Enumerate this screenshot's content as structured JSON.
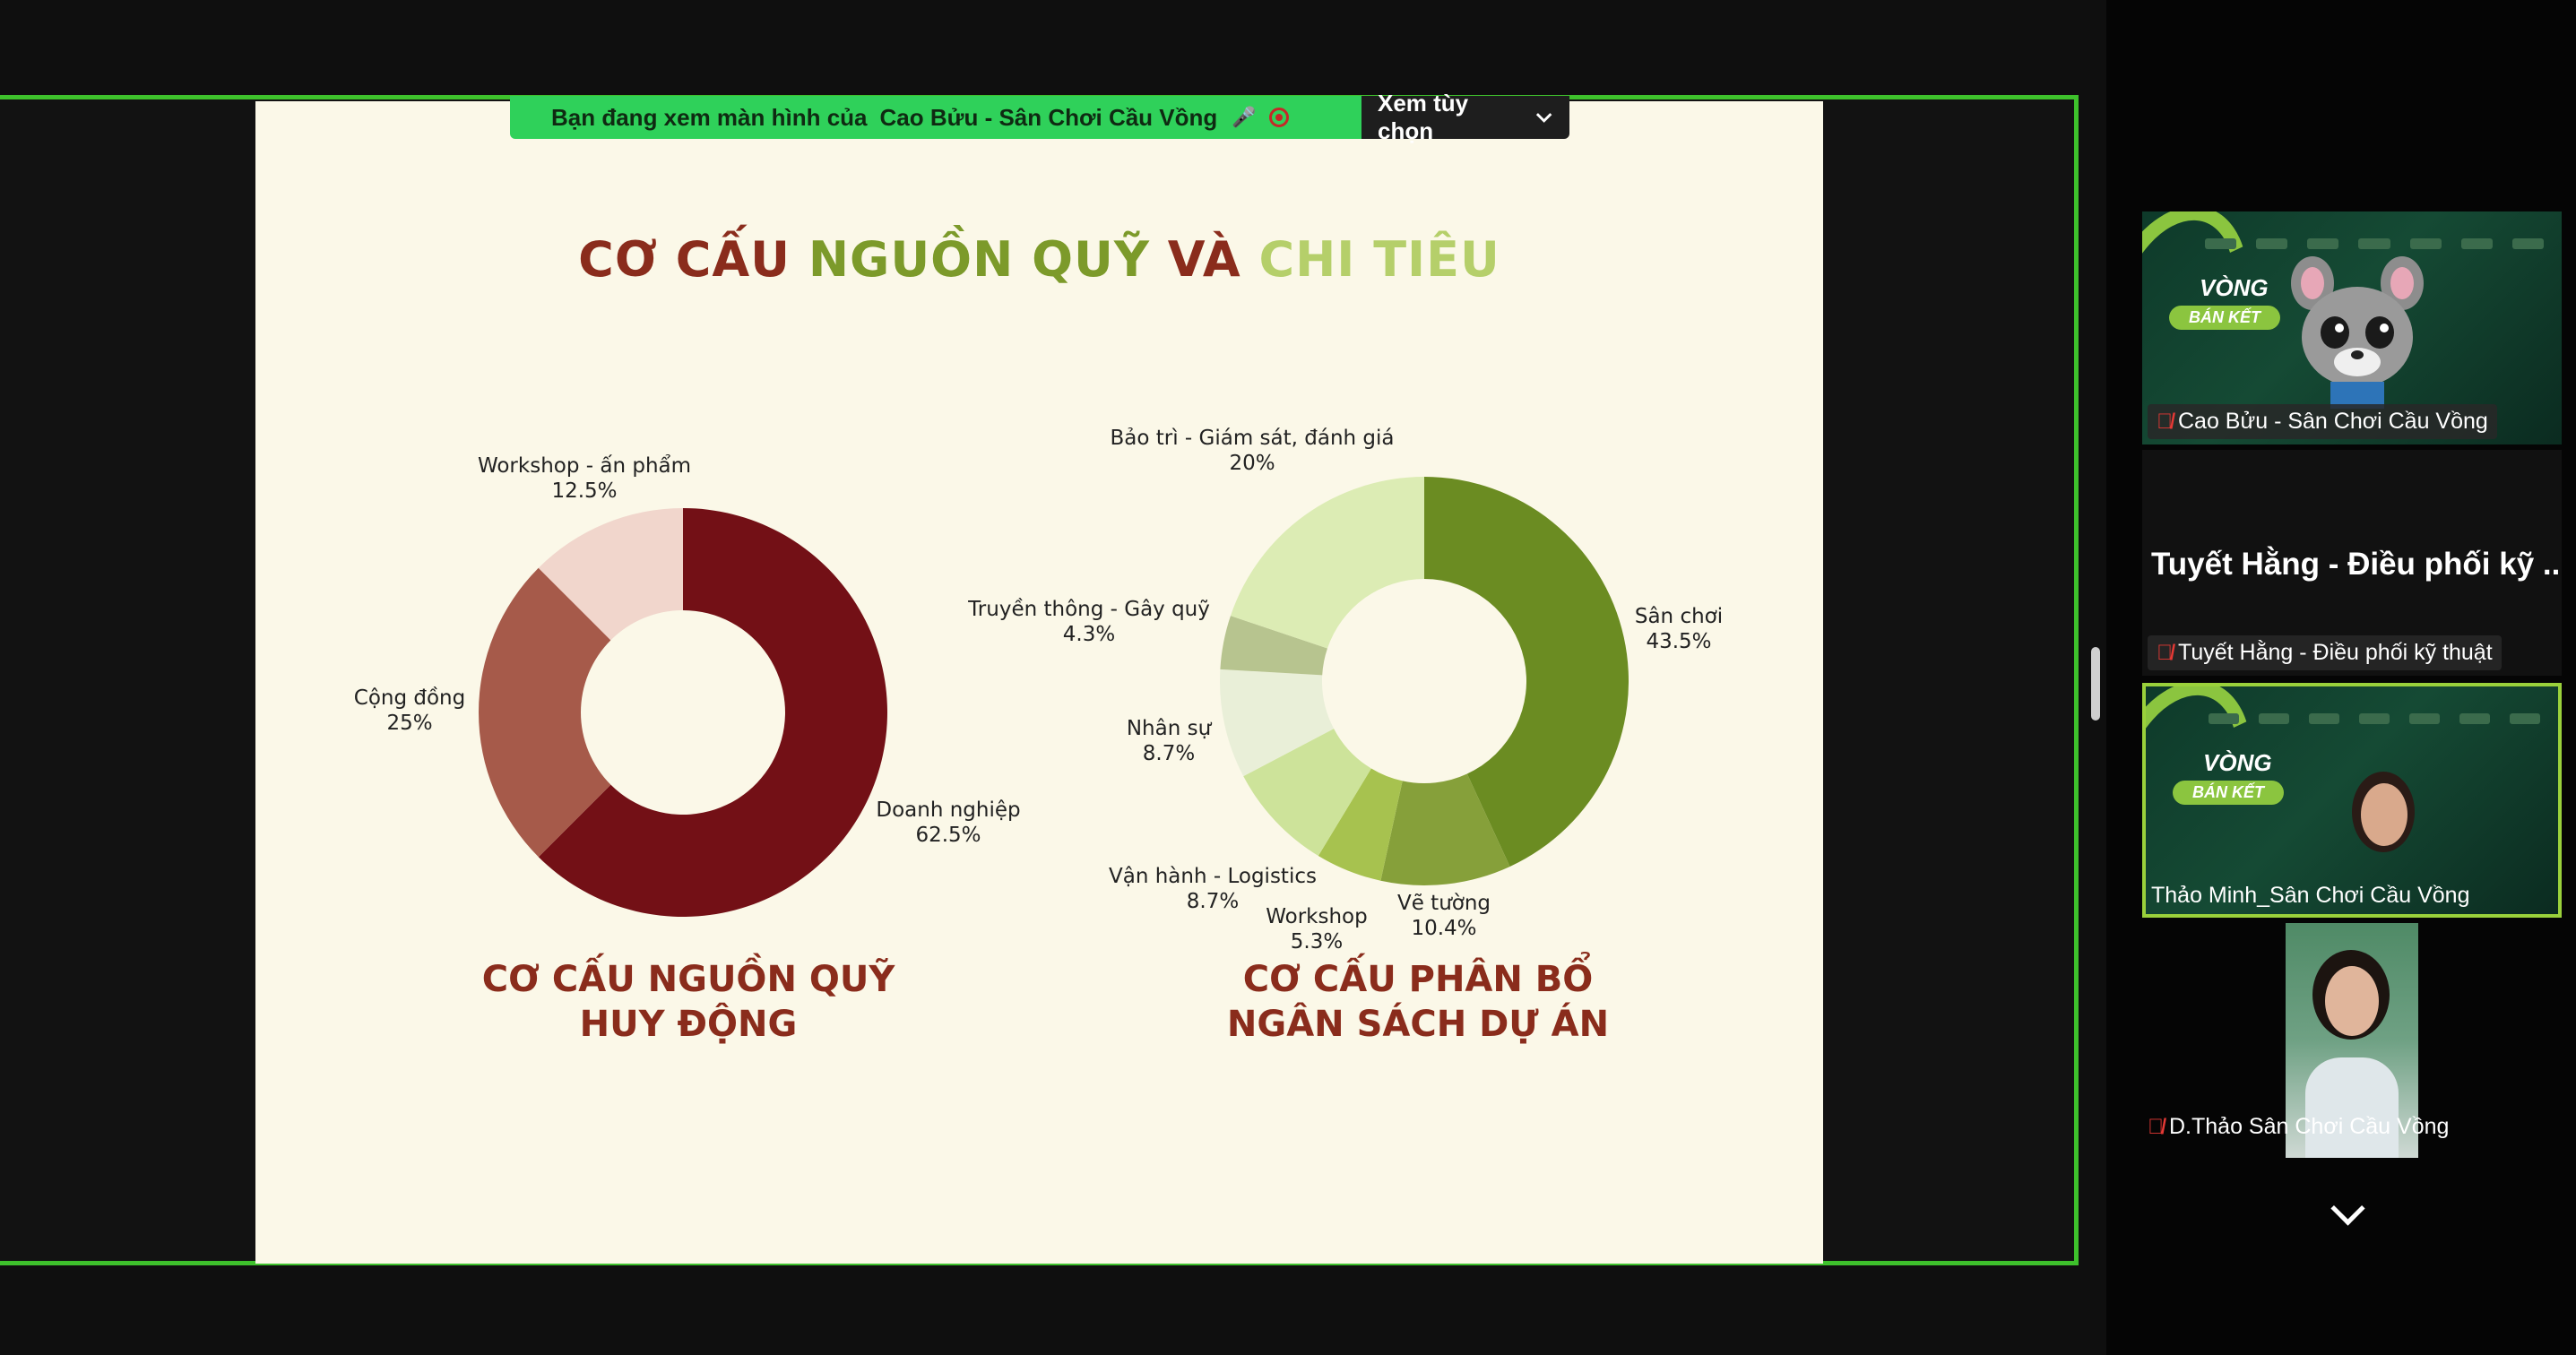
{
  "banner": {
    "prefix": "Bạn đang xem màn hình của",
    "presenter": "Cao Bửu - Sân Chơi Cầu Vồng",
    "options_label": "Xem tùy chọn",
    "options_icon": "chevron-down-icon"
  },
  "slide": {
    "title_part1": "CƠ CẤU",
    "title_part2": "NGUỒN QUỸ",
    "title_part3": "VÀ",
    "title_part4": "CHI TIÊU",
    "colors": {
      "title_dark": "#8a2c1c",
      "title_green": "#7c9a2a",
      "title_lightgreen": "#b5cf6a",
      "background": "#fbf8e8"
    }
  },
  "chart_data": [
    {
      "type": "pie",
      "variant": "donut",
      "title": "CƠ CẤU NGUỒN QUỸ HUY ĐỘNG",
      "title_lines": [
        "CƠ CẤU NGUỒN QUỸ",
        "HUY ĐỘNG"
      ],
      "slices": [
        {
          "label": "Doanh nghiệp",
          "value": 62.5,
          "display": "62.5%",
          "color": "#731016"
        },
        {
          "label": "Cộng đồng",
          "value": 25,
          "display": "25%",
          "color": "#a65a4a"
        },
        {
          "label": "Workshop - ấn phẩm",
          "value": 12.5,
          "display": "12.5%",
          "color": "#f1d6cc"
        }
      ]
    },
    {
      "type": "pie",
      "variant": "donut",
      "title": "CƠ CẤU PHÂN BỔ NGÂN SÁCH DỰ ÁN",
      "title_lines": [
        "CƠ CẤU PHÂN BỔ",
        "NGÂN SÁCH DỰ ÁN"
      ],
      "slices": [
        {
          "label": "Sân chơi",
          "value": 43.5,
          "display": "43.5%",
          "color": "#6b8c22"
        },
        {
          "label": "Vẽ tường",
          "value": 10.4,
          "display": "10.4%",
          "color": "#86a03a"
        },
        {
          "label": "Workshop",
          "value": 5.3,
          "display": "5.3%",
          "color": "#a7c24f"
        },
        {
          "label": "Vận hành - Logistics",
          "value": 8.7,
          "display": "8.7%",
          "color": "#cde39a"
        },
        {
          "label": "Nhân sự",
          "value": 8.7,
          "display": "8.7%",
          "color": "#e9efd8"
        },
        {
          "label": "Truyền thông - Gây quỹ",
          "value": 4.3,
          "display": "4.3%",
          "color": "#b7c48f"
        },
        {
          "label": "Bảo trì - Giám sát, đánh giá",
          "value": 20,
          "display": "20%",
          "color": "#dcecb4"
        }
      ]
    }
  ],
  "participants": [
    {
      "name": "Cao Bửu - Sân Chơi Cầu Vồng",
      "muted": true,
      "background_lines": [
        "VÒNG",
        "BÁN KẾT"
      ]
    },
    {
      "name": "Tuyết Hằng - Điều phối kỹ thuật",
      "display_name": "Tuyết Hằng - Điều phối kỹ ...",
      "muted": true
    },
    {
      "name": "Thảo Minh_Sân Chơi Cầu Vồng",
      "muted": false,
      "speaking": true,
      "background_lines": [
        "VÒNG",
        "BÁN KẾT"
      ]
    },
    {
      "name": "D.Thảo Sân Chơi Cầu Vồng",
      "muted": true
    }
  ],
  "panel": {
    "more_icon": "chevron-down-icon"
  }
}
